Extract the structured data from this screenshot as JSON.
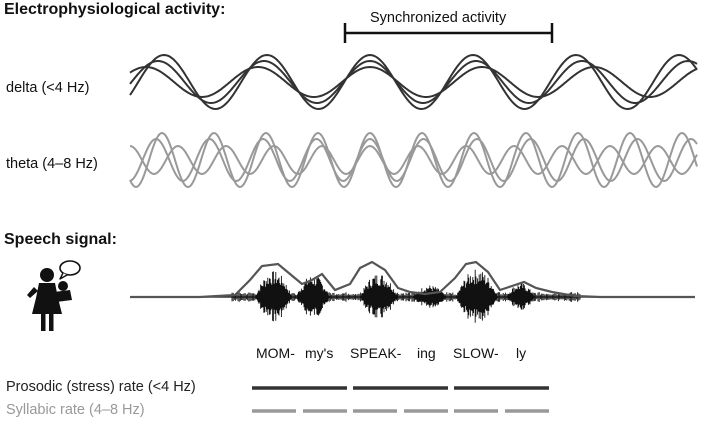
{
  "headings": {
    "electro": "Electrophysiological activity:",
    "speech": "Speech signal:"
  },
  "sync": {
    "label": "Synchronized activity"
  },
  "bands": {
    "delta": {
      "label": "delta (<4 Hz)",
      "color": "#333333"
    },
    "theta": {
      "label": "theta (4–8 Hz)",
      "color": "#999999"
    }
  },
  "syllables": [
    "MOM-",
    "my's",
    "SPEAK-",
    "ing",
    "SLOW-",
    "ly"
  ],
  "rates": {
    "prosodic": {
      "label": "Prosodic (stress) rate (<4 Hz)",
      "color": "#333333"
    },
    "syllabic": {
      "label": "Syllabic rate (4–8 Hz)",
      "color": "#999999"
    }
  },
  "icons": {
    "speaker": "mother-holding-baby-icon",
    "speech_bubble": "speech-bubble-icon"
  }
}
